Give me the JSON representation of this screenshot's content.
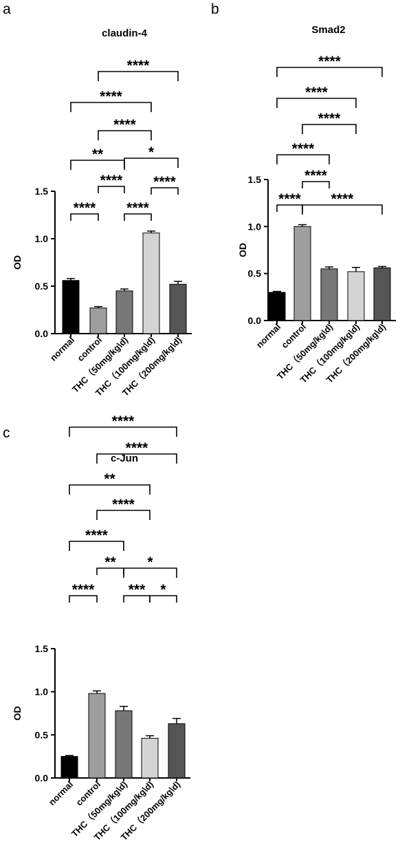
{
  "chart_data": [
    {
      "panel": "a",
      "type": "bar",
      "title": "claudin-4",
      "ylabel": "OD",
      "categories": [
        "normal",
        "control",
        "THC（50mg/kg\\d)",
        "THC（100mg/kg\\d)",
        "THC（200mg/kg\\d)"
      ],
      "values": [
        0.56,
        0.27,
        0.45,
        1.06,
        0.52
      ],
      "errors": [
        0.02,
        0.015,
        0.02,
        0.02,
        0.03
      ],
      "bar_colors": [
        "#000000",
        "#9e9e9e",
        "#777777",
        "#d4d4d4",
        "#555555"
      ],
      "ylim": [
        0,
        1.5
      ],
      "yticks": [
        "0.0",
        "0.5",
        "1.0",
        "1.5"
      ],
      "grid": false,
      "significance": [
        {
          "from": 0,
          "to": 1,
          "label": "****"
        },
        {
          "from": 2,
          "to": 3,
          "label": "****"
        },
        {
          "from": 3,
          "to": 4,
          "label": "****"
        },
        {
          "from": 1,
          "to": 2,
          "label": "****"
        },
        {
          "from": 0,
          "to": 2,
          "label": "**"
        },
        {
          "from": 2,
          "to": 4,
          "label": "*"
        },
        {
          "from": 1,
          "to": 3,
          "label": "****"
        },
        {
          "from": 0,
          "to": 3,
          "label": "****"
        },
        {
          "from": 1,
          "to": 4,
          "label": "****"
        }
      ]
    },
    {
      "panel": "b",
      "type": "bar",
      "title": "Smad2",
      "ylabel": "OD",
      "categories": [
        "normal",
        "control",
        "THC（50mg/kg\\d)",
        "THC（100mg/kg\\d)",
        "THC（200mg/kg\\d)"
      ],
      "values": [
        0.3,
        1.0,
        0.55,
        0.52,
        0.56
      ],
      "errors": [
        0.01,
        0.02,
        0.02,
        0.045,
        0.015
      ],
      "bar_colors": [
        "#000000",
        "#9e9e9e",
        "#777777",
        "#d4d4d4",
        "#555555"
      ],
      "ylim": [
        0,
        1.5
      ],
      "yticks": [
        "0.0",
        "0.5",
        "1.0",
        "1.5"
      ],
      "grid": false,
      "significance": [
        {
          "from": 0,
          "to": 1,
          "label": "****"
        },
        {
          "from": 1,
          "to": 4,
          "label": "****"
        },
        {
          "from": 1,
          "to": 2,
          "label": "****"
        },
        {
          "from": 0,
          "to": 2,
          "label": "****"
        },
        {
          "from": 1,
          "to": 3,
          "label": "****"
        },
        {
          "from": 0,
          "to": 3,
          "label": "****"
        },
        {
          "from": 0,
          "to": 4,
          "label": "****"
        }
      ]
    },
    {
      "panel": "c",
      "type": "bar",
      "title": "c-Jun",
      "ylabel": "OD",
      "categories": [
        "normal",
        "control",
        "THC（50mg/kg\\d)",
        "THC（100mg/kg\\d)",
        "THC（200mg/kg\\d)"
      ],
      "values": [
        0.25,
        0.98,
        0.78,
        0.46,
        0.63
      ],
      "errors": [
        0.01,
        0.03,
        0.05,
        0.03,
        0.06
      ],
      "bar_colors": [
        "#000000",
        "#9e9e9e",
        "#777777",
        "#d4d4d4",
        "#555555"
      ],
      "ylim": [
        0,
        1.5
      ],
      "yticks": [
        "0.0",
        "0.5",
        "1.0",
        "1.5"
      ],
      "grid": false,
      "significance": [
        {
          "from": 0,
          "to": 1,
          "label": "****"
        },
        {
          "from": 2,
          "to": 3,
          "label": "***"
        },
        {
          "from": 3,
          "to": 4,
          "label": "*"
        },
        {
          "from": 1,
          "to": 2,
          "label": "**"
        },
        {
          "from": 2,
          "to": 4,
          "label": "*"
        },
        {
          "from": 0,
          "to": 2,
          "label": "****"
        },
        {
          "from": 1,
          "to": 3,
          "label": "****"
        },
        {
          "from": 0,
          "to": 3,
          "label": "**"
        },
        {
          "from": 1,
          "to": 4,
          "label": "****"
        },
        {
          "from": 0,
          "to": 4,
          "label": "****"
        }
      ]
    }
  ]
}
